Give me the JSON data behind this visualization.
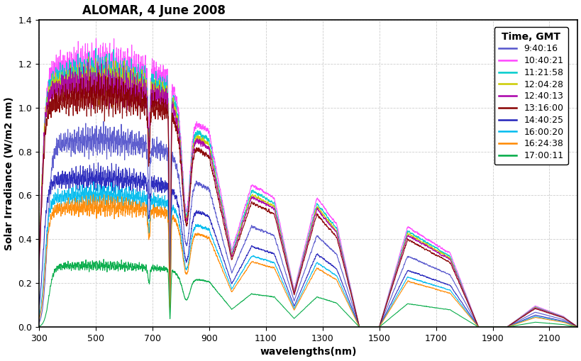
{
  "title": "ALOMAR, 4 June 2008",
  "xlabel": "wavelengths(nm)",
  "ylabel": "Solar Irradiance (W/m2 nm)",
  "xlim": [
    300,
    2200
  ],
  "ylim": [
    0,
    1.4
  ],
  "xticks": [
    300,
    500,
    700,
    900,
    1100,
    1300,
    1500,
    1700,
    1900,
    2100
  ],
  "yticks": [
    0,
    0.2,
    0.4,
    0.6,
    0.8,
    1.0,
    1.2,
    1.4
  ],
  "legend_title": "Time, GMT",
  "series": [
    {
      "label": "9:40:16",
      "color": "#5555cc",
      "scale": 0.85,
      "uv_cut": 330
    },
    {
      "label": "10:40:21",
      "color": "#ff44ff",
      "scale": 1.2,
      "uv_cut": 310
    },
    {
      "label": "11:21:58",
      "color": "#00cccc",
      "scale": 1.15,
      "uv_cut": 308
    },
    {
      "label": "12:04:28",
      "color": "#cccc00",
      "scale": 1.12,
      "uv_cut": 307
    },
    {
      "label": "12:40:13",
      "color": "#aa00aa",
      "scale": 1.1,
      "uv_cut": 307
    },
    {
      "label": "13:16:00",
      "color": "#880000",
      "scale": 1.05,
      "uv_cut": 308
    },
    {
      "label": "14:40:25",
      "color": "#2222bb",
      "scale": 0.68,
      "uv_cut": 315
    },
    {
      "label": "16:00:20",
      "color": "#00bbee",
      "scale": 0.6,
      "uv_cut": 320
    },
    {
      "label": "16:24:38",
      "color": "#ff8800",
      "scale": 0.55,
      "uv_cut": 322
    },
    {
      "label": "17:00:11",
      "color": "#00aa44",
      "scale": 0.28,
      "uv_cut": 335
    }
  ],
  "background_color": "#ffffff",
  "grid_color": "#c8c8c8",
  "title_fontsize": 12,
  "label_fontsize": 10,
  "tick_fontsize": 9,
  "legend_fontsize": 9
}
